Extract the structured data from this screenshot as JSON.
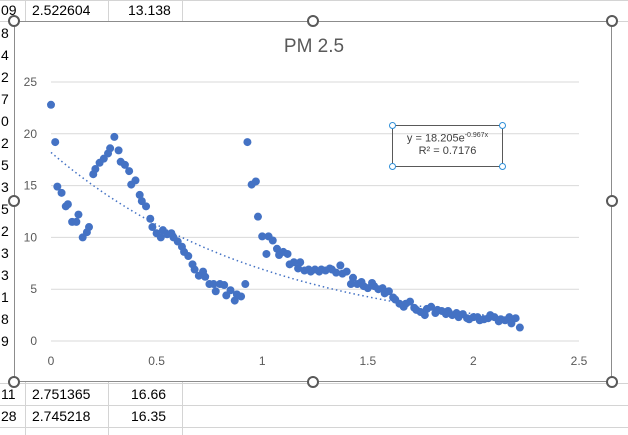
{
  "sheet": {
    "rows_top": [
      {
        "a": "09",
        "b": "2.522604",
        "c": "13.138"
      }
    ],
    "left_fragments": [
      "8",
      "4",
      "2",
      "7",
      "0",
      "2",
      "5",
      "3",
      "5",
      "2",
      "3",
      "3",
      "1",
      "8",
      "9"
    ],
    "rows_bottom": [
      {
        "a": "11",
        "b": "2.751365",
        "c": "16.66"
      },
      {
        "a": "28",
        "b": "2.745218",
        "c": "16.35"
      }
    ]
  },
  "colors": {
    "marker": "#4472c4",
    "trend": "#4472c4",
    "axis_text": "#595959",
    "gridline": "#d9d9d9"
  },
  "trendline": {
    "equation_prefix": "y = 18.205e",
    "equation_exponent": "-0.967x",
    "r_squared": "R² = 0.7176"
  },
  "chart_data": {
    "type": "scatter",
    "title": "PM 2.5",
    "xlabel": "",
    "ylabel": "",
    "xlim": [
      0,
      2.5
    ],
    "ylim": [
      0,
      25
    ],
    "x_ticks": [
      "0",
      "0.5",
      "1",
      "1.5",
      "2",
      "2.5"
    ],
    "y_ticks": [
      "0",
      "5",
      "10",
      "15",
      "20",
      "25"
    ],
    "grid": "horizontal",
    "legend": "none",
    "trendline": {
      "type": "exponential",
      "a": 18.205,
      "b": -0.967,
      "x_range": [
        0,
        2.22
      ]
    },
    "series": [
      {
        "points": [
          [
            0.0,
            22.8
          ],
          [
            0.02,
            19.2
          ],
          [
            0.03,
            14.9
          ],
          [
            0.05,
            14.3
          ],
          [
            0.07,
            13.0
          ],
          [
            0.08,
            13.2
          ],
          [
            0.1,
            11.5
          ],
          [
            0.12,
            11.5
          ],
          [
            0.13,
            12.2
          ],
          [
            0.15,
            10.0
          ],
          [
            0.17,
            10.5
          ],
          [
            0.18,
            11.0
          ],
          [
            0.2,
            16.1
          ],
          [
            0.21,
            16.6
          ],
          [
            0.23,
            17.2
          ],
          [
            0.25,
            17.6
          ],
          [
            0.27,
            18.1
          ],
          [
            0.28,
            18.6
          ],
          [
            0.3,
            19.7
          ],
          [
            0.32,
            18.4
          ],
          [
            0.33,
            17.3
          ],
          [
            0.35,
            17.0
          ],
          [
            0.37,
            16.4
          ],
          [
            0.38,
            15.1
          ],
          [
            0.4,
            15.5
          ],
          [
            0.42,
            14.1
          ],
          [
            0.43,
            13.5
          ],
          [
            0.45,
            13.0
          ],
          [
            0.47,
            11.8
          ],
          [
            0.48,
            11.0
          ],
          [
            0.5,
            10.4
          ],
          [
            0.52,
            10.0
          ],
          [
            0.53,
            10.7
          ],
          [
            0.55,
            10.3
          ],
          [
            0.57,
            10.4
          ],
          [
            0.58,
            10.0
          ],
          [
            0.6,
            9.6
          ],
          [
            0.62,
            9.1
          ],
          [
            0.63,
            8.6
          ],
          [
            0.65,
            8.2
          ],
          [
            0.67,
            7.4
          ],
          [
            0.68,
            6.9
          ],
          [
            0.7,
            6.3
          ],
          [
            0.72,
            6.7
          ],
          [
            0.73,
            6.2
          ],
          [
            0.75,
            5.5
          ],
          [
            0.77,
            5.5
          ],
          [
            0.78,
            4.8
          ],
          [
            0.8,
            5.5
          ],
          [
            0.82,
            5.4
          ],
          [
            0.83,
            4.4
          ],
          [
            0.85,
            4.9
          ],
          [
            0.87,
            3.9
          ],
          [
            0.88,
            4.5
          ],
          [
            0.9,
            4.3
          ],
          [
            0.92,
            5.5
          ],
          [
            0.93,
            19.2
          ],
          [
            0.95,
            15.1
          ],
          [
            0.97,
            15.4
          ],
          [
            0.98,
            12.0
          ],
          [
            1.0,
            10.1
          ],
          [
            1.02,
            8.4
          ],
          [
            1.03,
            10.1
          ],
          [
            1.05,
            9.7
          ],
          [
            1.07,
            8.9
          ],
          [
            1.08,
            8.3
          ],
          [
            1.1,
            8.6
          ],
          [
            1.12,
            8.4
          ],
          [
            1.13,
            7.4
          ],
          [
            1.15,
            7.6
          ],
          [
            1.17,
            7.0
          ],
          [
            1.18,
            7.6
          ],
          [
            1.2,
            6.8
          ],
          [
            1.22,
            6.9
          ],
          [
            1.23,
            6.7
          ],
          [
            1.25,
            6.9
          ],
          [
            1.27,
            6.7
          ],
          [
            1.28,
            6.9
          ],
          [
            1.3,
            6.8
          ],
          [
            1.32,
            7.0
          ],
          [
            1.33,
            6.9
          ],
          [
            1.35,
            6.6
          ],
          [
            1.37,
            7.3
          ],
          [
            1.38,
            6.5
          ],
          [
            1.4,
            6.7
          ],
          [
            1.42,
            5.5
          ],
          [
            1.43,
            6.1
          ],
          [
            1.45,
            5.5
          ],
          [
            1.47,
            5.7
          ],
          [
            1.48,
            5.3
          ],
          [
            1.5,
            5.1
          ],
          [
            1.52,
            5.6
          ],
          [
            1.53,
            5.3
          ],
          [
            1.55,
            5.0
          ],
          [
            1.57,
            5.1
          ],
          [
            1.58,
            4.6
          ],
          [
            1.6,
            4.8
          ],
          [
            1.62,
            4.2
          ],
          [
            1.63,
            4.0
          ],
          [
            1.65,
            3.6
          ],
          [
            1.67,
            3.3
          ],
          [
            1.68,
            3.6
          ],
          [
            1.7,
            3.8
          ],
          [
            1.72,
            3.2
          ],
          [
            1.73,
            3.0
          ],
          [
            1.75,
            2.8
          ],
          [
            1.77,
            2.5
          ],
          [
            1.78,
            3.1
          ],
          [
            1.8,
            3.3
          ],
          [
            1.82,
            2.7
          ],
          [
            1.83,
            3.0
          ],
          [
            1.85,
            2.9
          ],
          [
            1.87,
            2.6
          ],
          [
            1.88,
            2.9
          ],
          [
            1.9,
            2.5
          ],
          [
            1.92,
            2.7
          ],
          [
            1.93,
            2.3
          ],
          [
            1.95,
            2.6
          ],
          [
            1.97,
            2.2
          ],
          [
            1.98,
            2.1
          ],
          [
            2.0,
            2.3
          ],
          [
            2.02,
            2.3
          ],
          [
            2.03,
            2.0
          ],
          [
            2.05,
            2.1
          ],
          [
            2.07,
            2.2
          ],
          [
            2.08,
            2.5
          ],
          [
            2.1,
            2.3
          ],
          [
            2.12,
            1.9
          ],
          [
            2.13,
            2.1
          ],
          [
            2.15,
            2.0
          ],
          [
            2.17,
            2.3
          ],
          [
            2.18,
            1.7
          ],
          [
            2.2,
            2.2
          ],
          [
            2.22,
            1.3
          ]
        ]
      }
    ]
  }
}
